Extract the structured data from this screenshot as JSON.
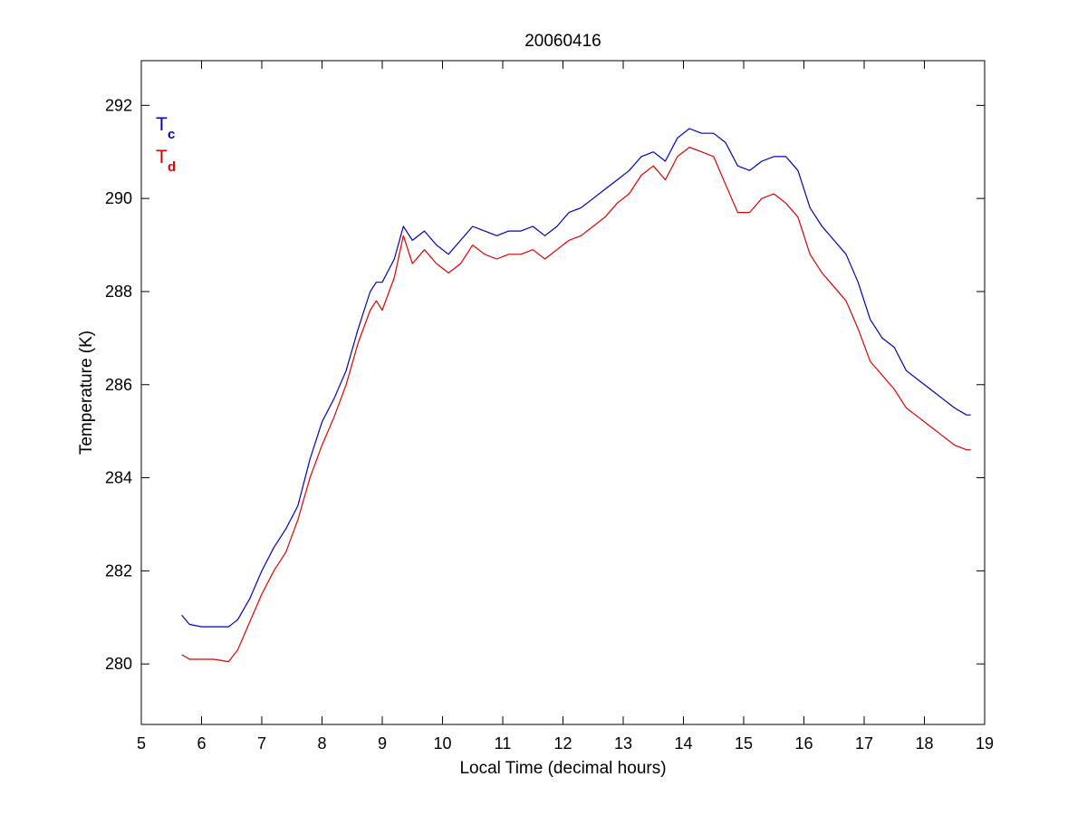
{
  "chart_data": {
    "type": "line",
    "title": "20060416",
    "xlabel": "Local Time (decimal hours)",
    "ylabel": "Temperature (K)",
    "xlim": [
      5,
      19
    ],
    "ylim": [
      278.7,
      292.96
    ],
    "xticks": [
      5,
      6,
      7,
      8,
      9,
      10,
      11,
      12,
      13,
      14,
      15,
      16,
      17,
      18,
      19
    ],
    "yticks": [
      280,
      282,
      284,
      286,
      288,
      290,
      292
    ],
    "grid": false,
    "legend": {
      "placement": "top-left"
    },
    "series": [
      {
        "name": "T",
        "subscript": "c",
        "color": "#0000bb",
        "x": [
          5.67,
          5.8,
          6.0,
          6.2,
          6.45,
          6.6,
          6.8,
          7.0,
          7.2,
          7.4,
          7.6,
          7.8,
          8.0,
          8.2,
          8.4,
          8.6,
          8.8,
          8.9,
          9.0,
          9.2,
          9.35,
          9.5,
          9.7,
          9.9,
          10.1,
          10.3,
          10.5,
          10.7,
          10.9,
          11.1,
          11.3,
          11.5,
          11.7,
          11.9,
          12.1,
          12.3,
          12.5,
          12.7,
          12.9,
          13.1,
          13.3,
          13.5,
          13.7,
          13.9,
          14.1,
          14.3,
          14.5,
          14.7,
          14.9,
          15.1,
          15.3,
          15.5,
          15.7,
          15.9,
          16.1,
          16.3,
          16.5,
          16.7,
          16.9,
          17.1,
          17.3,
          17.5,
          17.7,
          17.9,
          18.1,
          18.3,
          18.5,
          18.7,
          18.77
        ],
        "values": [
          281.05,
          280.85,
          280.8,
          280.8,
          280.8,
          280.95,
          281.4,
          282.0,
          282.5,
          282.9,
          283.4,
          284.4,
          285.2,
          285.7,
          286.3,
          287.2,
          288.0,
          288.2,
          288.2,
          288.7,
          289.4,
          289.1,
          289.3,
          289.0,
          288.8,
          289.1,
          289.4,
          289.3,
          289.2,
          289.3,
          289.3,
          289.4,
          289.2,
          289.4,
          289.7,
          289.8,
          290.0,
          290.2,
          290.4,
          290.6,
          290.9,
          291.0,
          290.8,
          291.3,
          291.5,
          291.4,
          291.4,
          291.2,
          290.7,
          290.6,
          290.8,
          290.9,
          290.9,
          290.6,
          289.8,
          289.4,
          289.1,
          288.8,
          288.2,
          287.4,
          287.0,
          286.8,
          286.3,
          286.1,
          285.9,
          285.7,
          285.5,
          285.35,
          285.35
        ]
      },
      {
        "name": "T",
        "subscript": "d",
        "color": "#dd0000",
        "x": [
          5.67,
          5.8,
          6.0,
          6.2,
          6.45,
          6.6,
          6.8,
          7.0,
          7.2,
          7.4,
          7.6,
          7.8,
          8.0,
          8.2,
          8.4,
          8.6,
          8.8,
          8.9,
          9.0,
          9.2,
          9.35,
          9.5,
          9.7,
          9.9,
          10.1,
          10.3,
          10.5,
          10.7,
          10.9,
          11.1,
          11.3,
          11.5,
          11.7,
          11.9,
          12.1,
          12.3,
          12.5,
          12.7,
          12.9,
          13.1,
          13.3,
          13.5,
          13.7,
          13.9,
          14.1,
          14.3,
          14.5,
          14.7,
          14.9,
          15.1,
          15.3,
          15.5,
          15.7,
          15.9,
          16.1,
          16.3,
          16.5,
          16.7,
          16.9,
          17.1,
          17.3,
          17.5,
          17.7,
          17.9,
          18.1,
          18.3,
          18.5,
          18.7,
          18.77
        ],
        "values": [
          280.2,
          280.1,
          280.1,
          280.1,
          280.05,
          280.3,
          280.9,
          281.5,
          282.0,
          282.4,
          283.1,
          284.0,
          284.7,
          285.3,
          286.0,
          286.9,
          287.6,
          287.8,
          287.6,
          288.3,
          289.2,
          288.6,
          288.9,
          288.6,
          288.4,
          288.6,
          289.0,
          288.8,
          288.7,
          288.8,
          288.8,
          288.9,
          288.7,
          288.9,
          289.1,
          289.2,
          289.4,
          289.6,
          289.9,
          290.1,
          290.5,
          290.7,
          290.4,
          290.9,
          291.1,
          291.0,
          290.9,
          290.3,
          289.7,
          289.7,
          290.0,
          290.1,
          289.9,
          289.6,
          288.8,
          288.4,
          288.1,
          287.8,
          287.2,
          286.5,
          286.2,
          285.9,
          285.5,
          285.3,
          285.1,
          284.9,
          284.7,
          284.6,
          284.6
        ]
      }
    ]
  }
}
